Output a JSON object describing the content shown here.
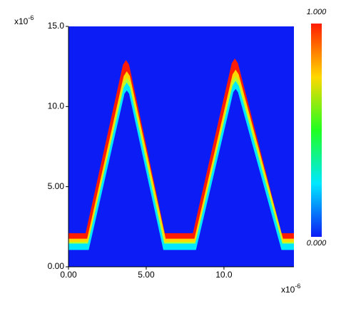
{
  "chart_data": {
    "type": "contour",
    "background": "#0c1cf5",
    "x_multiplier": {
      "base": "x10",
      "exponent": "-6"
    },
    "y_multiplier": {
      "base": "x10",
      "exponent": "-6"
    },
    "xlim": [
      0,
      14.5
    ],
    "ylim": [
      0,
      15
    ],
    "xticks": [
      {
        "value": 0,
        "label": "0.00"
      },
      {
        "value": 5,
        "label": "5.00"
      },
      {
        "value": 10,
        "label": "10.0"
      }
    ],
    "yticks": [
      {
        "value": 0,
        "label": "0.00"
      },
      {
        "value": 5,
        "label": "5.00"
      },
      {
        "value": 10,
        "label": "10.0"
      },
      {
        "value": 15,
        "label": "15.0"
      }
    ],
    "contours": [
      {
        "color": "#ff1c00",
        "x": [
          0,
          1.1,
          3.5,
          3.7,
          3.9,
          6.2,
          8.0,
          10.5,
          10.7,
          10.9,
          13.7,
          14.5
        ],
        "y": [
          2.1,
          2.1,
          12.6,
          12.9,
          12.6,
          2.1,
          2.1,
          12.7,
          13.0,
          12.7,
          2.1,
          2.1
        ]
      },
      {
        "color": "#ffd800",
        "x": [
          0,
          1.2,
          3.55,
          3.75,
          3.95,
          6.25,
          8.1,
          10.55,
          10.75,
          10.95,
          13.8,
          14.5
        ],
        "y": [
          1.75,
          1.75,
          11.9,
          12.2,
          11.9,
          1.75,
          1.75,
          12.0,
          12.3,
          12.0,
          1.75,
          1.75
        ]
      },
      {
        "color": "#b4ff30",
        "x": [
          0,
          1.25,
          3.55,
          3.75,
          3.95,
          6.2,
          8.15,
          10.55,
          10.75,
          10.95,
          13.8,
          14.5
        ],
        "y": [
          1.55,
          1.55,
          11.5,
          11.8,
          11.5,
          1.55,
          1.55,
          11.6,
          11.9,
          11.6,
          1.55,
          1.55
        ]
      },
      {
        "color": "#00e8ff",
        "x": [
          0,
          1.25,
          3.55,
          3.75,
          3.95,
          6.15,
          8.15,
          10.55,
          10.75,
          10.95,
          13.75,
          14.5
        ],
        "y": [
          1.45,
          1.45,
          11.2,
          11.5,
          11.2,
          1.45,
          1.45,
          11.3,
          11.6,
          11.3,
          1.45,
          1.45
        ]
      },
      {
        "color": "#0c1cf5",
        "x": [
          0,
          1.3,
          3.6,
          3.75,
          3.9,
          6.1,
          8.2,
          10.6,
          10.75,
          10.9,
          13.7,
          14.5
        ],
        "y": [
          1.05,
          1.05,
          10.8,
          11.0,
          10.8,
          1.05,
          1.05,
          10.9,
          11.1,
          10.9,
          1.05,
          1.05
        ]
      }
    ],
    "colorbar": {
      "colors": [
        "#0c1cf5",
        "#00e8ff",
        "#20ff20",
        "#ffd800",
        "#ff1c00"
      ],
      "lim": [
        0,
        1
      ],
      "ticks": [
        {
          "value": 0,
          "label": "0.000"
        },
        {
          "value": 1,
          "label": "1.000"
        }
      ]
    }
  }
}
